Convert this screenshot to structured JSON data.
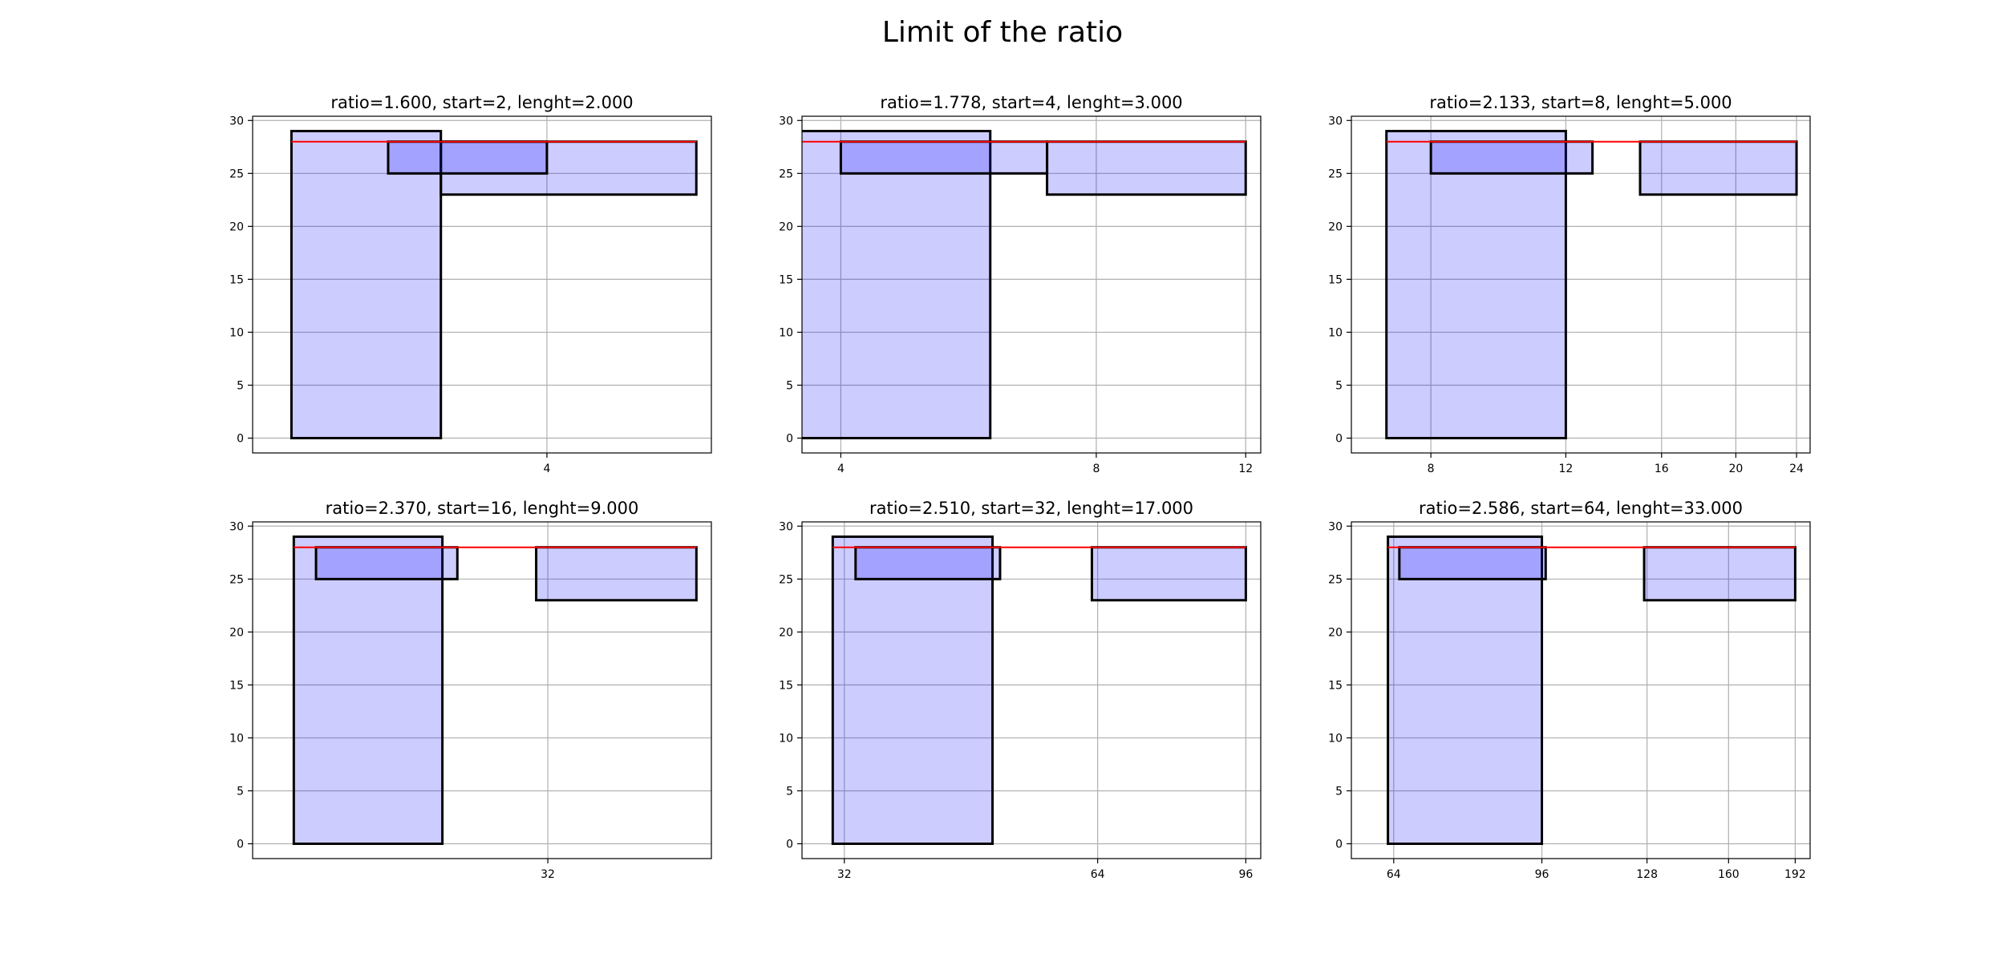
{
  "figure": {
    "suptitle": "Limit of the ratio"
  },
  "colors": {
    "fill": "#0000ff",
    "fill_opacity": 0.2,
    "edge": "#000000",
    "red_line": "#ff0000",
    "grid": "#b0b0b0",
    "axes_edge": "#000000"
  },
  "chart_data": [
    {
      "type": "bar",
      "title": "ratio=1.600, start=2, lenght=2.000",
      "x_scale": "log2",
      "xlim": [
        1.8,
        6.25
      ],
      "ylim": [
        -1.4,
        30.4
      ],
      "xticks": [
        4
      ],
      "yticks": [
        0,
        5,
        10,
        15,
        20,
        25,
        30
      ],
      "grid": true,
      "red_line_y": 28,
      "bars": [
        {
          "x0": 2,
          "x1": 3,
          "y0": 0,
          "y1": 29
        },
        {
          "x0": 3,
          "x1": 6,
          "y0": 23,
          "y1": 28
        },
        {
          "x0": 2.6,
          "x1": 4,
          "y0": 25,
          "y1": 28
        }
      ]
    },
    {
      "type": "bar",
      "title": "ratio=1.778, start=4, lenght=3.000",
      "x_scale": "log2",
      "xlim": [
        3.6,
        12.5
      ],
      "ylim": [
        -1.4,
        30.4
      ],
      "xticks": [
        4,
        8,
        12
      ],
      "yticks": [
        0,
        5,
        10,
        15,
        20,
        25,
        30
      ],
      "grid": true,
      "red_line_y": 28,
      "bars": [
        {
          "x0": 3.3,
          "x1": 6,
          "y0": 0,
          "y1": 29
        },
        {
          "x0": 7,
          "x1": 12,
          "y0": 23,
          "y1": 28
        },
        {
          "x0": 4,
          "x1": 7,
          "y0": 25,
          "y1": 28
        }
      ]
    },
    {
      "type": "bar",
      "title": "ratio=2.133, start=8, lenght=5.000",
      "x_scale": "log2",
      "xlim": [
        6.3,
        25
      ],
      "ylim": [
        -1.4,
        30.4
      ],
      "xticks": [
        8,
        12,
        16,
        20,
        24
      ],
      "yticks": [
        0,
        5,
        10,
        15,
        20,
        25,
        30
      ],
      "grid": true,
      "red_line_y": 28,
      "bars": [
        {
          "x0": 7,
          "x1": 12,
          "y0": 0,
          "y1": 29
        },
        {
          "x0": 15,
          "x1": 24,
          "y0": 23,
          "y1": 28
        },
        {
          "x0": 8,
          "x1": 13,
          "y0": 25,
          "y1": 28
        }
      ]
    },
    {
      "type": "bar",
      "title": "ratio=2.370, start=16, lenght=9.000",
      "x_scale": "log2",
      "xlim": [
        14.3,
        50
      ],
      "ylim": [
        -1.4,
        30.4
      ],
      "xticks": [
        32
      ],
      "yticks": [
        0,
        5,
        10,
        15,
        20,
        25,
        30
      ],
      "grid": true,
      "red_line_y": 28,
      "bars": [
        {
          "x0": 16,
          "x1": 24,
          "y0": 0,
          "y1": 29
        },
        {
          "x0": 31,
          "x1": 48,
          "y0": 23,
          "y1": 28
        },
        {
          "x0": 17,
          "x1": 25,
          "y0": 25,
          "y1": 28
        }
      ]
    },
    {
      "type": "bar",
      "title": "ratio=2.510, start=32, lenght=17.000",
      "x_scale": "log2",
      "xlim": [
        28.5,
        100
      ],
      "ylim": [
        -1.4,
        30.4
      ],
      "xticks": [
        32,
        64,
        96
      ],
      "yticks": [
        0,
        5,
        10,
        15,
        20,
        25,
        30
      ],
      "grid": true,
      "red_line_y": 28,
      "bars": [
        {
          "x0": 31,
          "x1": 48,
          "y0": 0,
          "y1": 29
        },
        {
          "x0": 63,
          "x1": 96,
          "y0": 23,
          "y1": 28
        },
        {
          "x0": 33,
          "x1": 49,
          "y0": 25,
          "y1": 28
        }
      ]
    },
    {
      "type": "bar",
      "title": "ratio=2.586, start=64, lenght=33.000",
      "x_scale": "log2",
      "xlim": [
        57,
        200
      ],
      "ylim": [
        -1.4,
        30.4
      ],
      "xticks": [
        64,
        96,
        128,
        160,
        192
      ],
      "yticks": [
        0,
        5,
        10,
        15,
        20,
        25,
        30
      ],
      "grid": true,
      "red_line_y": 28,
      "bars": [
        {
          "x0": 63,
          "x1": 96,
          "y0": 0,
          "y1": 29
        },
        {
          "x0": 127,
          "x1": 192,
          "y0": 23,
          "y1": 28
        },
        {
          "x0": 65,
          "x1": 97,
          "y0": 25,
          "y1": 28
        }
      ]
    }
  ]
}
